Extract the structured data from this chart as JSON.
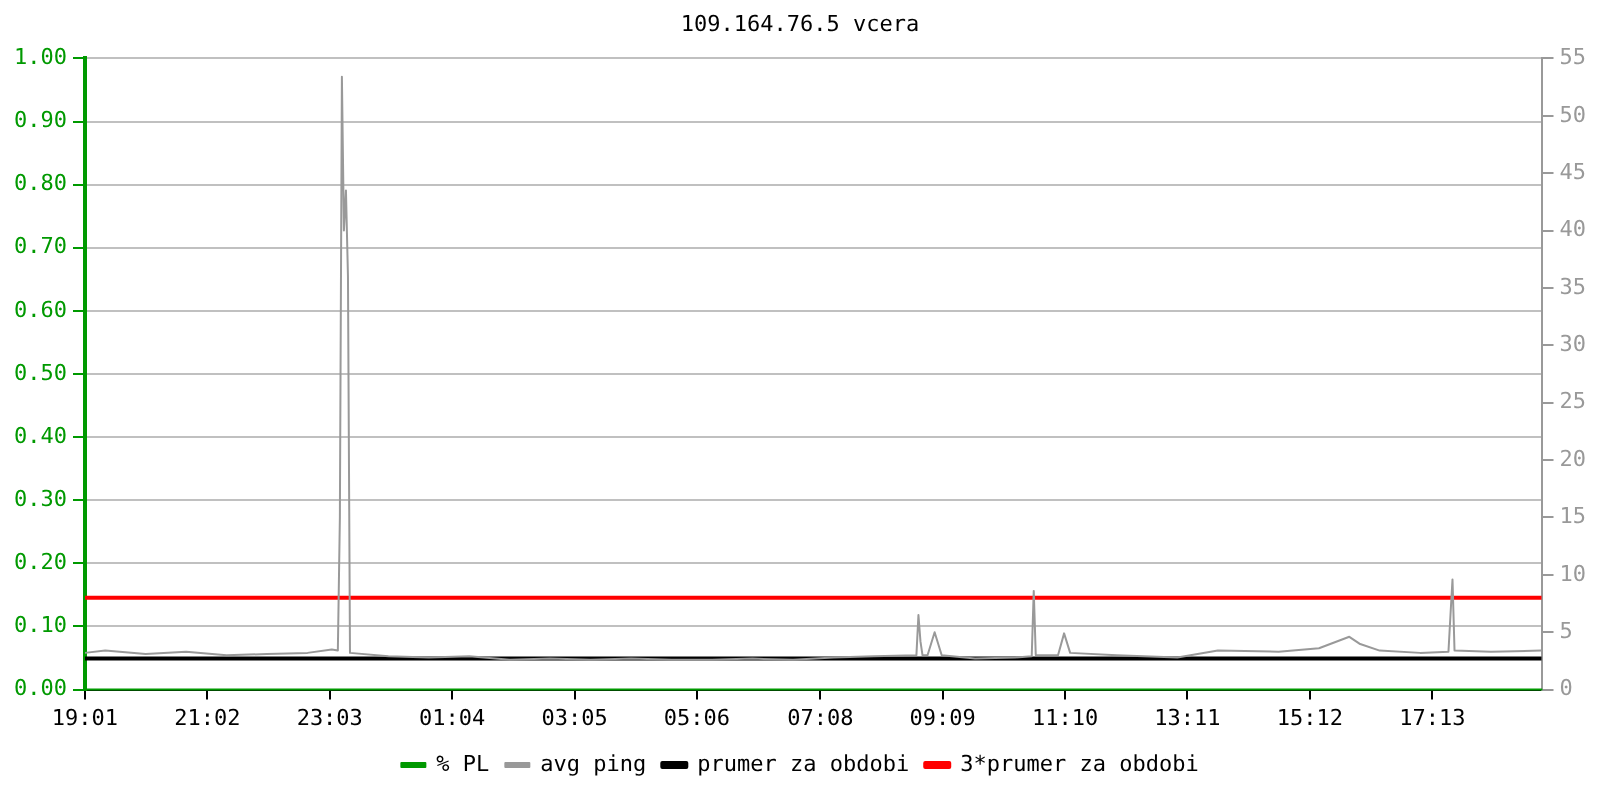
{
  "chart_data": {
    "type": "line",
    "title": "109.164.76.5 vcera",
    "marker": "none",
    "grid": "y",
    "legend": "bottom",
    "xlim": [
      "--01-01T19:01",
      "--01-02T19:01"
    ],
    "xticks": [
      {
        "value": "--01-01T19:01",
        "label": "19:01"
      },
      {
        "value": "--01-01T21:02",
        "label": "21:02"
      },
      {
        "value": "--01-01T23:03",
        "label": "23:03"
      },
      {
        "value": "--01-02T01:04",
        "label": "01:04"
      },
      {
        "value": "--01-02T03:05",
        "label": "03:05"
      },
      {
        "value": "--01-02T05:06",
        "label": "05:06"
      },
      {
        "value": "--01-02T07:08",
        "label": "07:08"
      },
      {
        "value": "--01-02T09:09",
        "label": "09:09"
      },
      {
        "value": "--01-02T11:10",
        "label": "11:10"
      },
      {
        "value": "--01-02T13:11",
        "label": "13:11"
      },
      {
        "value": "--01-02T15:12",
        "label": "15:12"
      },
      {
        "value": "--01-02T17:13",
        "label": "17:13"
      }
    ],
    "ylim": [
      0,
      1
    ],
    "yticks": [
      {
        "value": 0,
        "label": "0.00"
      },
      {
        "value": 0.1,
        "label": "0.10"
      },
      {
        "value": 0.2,
        "label": "0.20"
      },
      {
        "value": 0.3,
        "label": "0.30"
      },
      {
        "value": 0.4,
        "label": "0.40"
      },
      {
        "value": 0.5,
        "label": "0.50"
      },
      {
        "value": 0.6,
        "label": "0.60"
      },
      {
        "value": 0.7,
        "label": "0.70"
      },
      {
        "value": 0.8,
        "label": "0.80"
      },
      {
        "value": 0.9,
        "label": "0.90"
      },
      {
        "value": 1,
        "label": "1.00"
      }
    ],
    "y2lim": [
      0,
      55
    ],
    "y2ticks": [
      0,
      5,
      10,
      15,
      20,
      25,
      30,
      35,
      40,
      45,
      50,
      55
    ],
    "series": [
      {
        "name": "% PL",
        "color": "#009900",
        "x": [
          "--01-01T19:01",
          "--01-02T19:01"
        ],
        "values": [
          0,
          0
        ]
      },
      {
        "name": "avg ping",
        "color": "#999999",
        "axis": "y2",
        "x": [
          "--01-01T19:01",
          "--01-01T19:21",
          "--01-01T20:01",
          "--01-01T20:41",
          "--01-01T21:21",
          "--01-01T22:01",
          "--01-01T22:41",
          "--01-01T23:05",
          "--01-01T23:11",
          "--01-01T23:13",
          "--01-01T23:15",
          "--01-01T23:17",
          "--01-01T23:19",
          "--01-01T23:21",
          "--01-01T23:23",
          "--01-02T00:01",
          "--01-02T00:41",
          "--01-02T01:21",
          "--01-02T02:01",
          "--01-02T02:41",
          "--01-02T03:21",
          "--01-02T04:01",
          "--01-02T04:41",
          "--01-02T05:21",
          "--01-02T06:01",
          "--01-02T06:41",
          "--01-02T07:21",
          "--01-02T08:01",
          "--01-02T08:43",
          "--01-02T08:45",
          "--01-02T08:47",
          "--01-02T08:49",
          "--01-02T08:54",
          "--01-02T09:01",
          "--01-02T09:08",
          "--01-02T09:41",
          "--01-02T10:21",
          "--01-02T10:37",
          "--01-02T10:39",
          "--01-02T10:41",
          "--01-02T11:03",
          "--01-02T11:09",
          "--01-02T11:15",
          "--01-02T12:01",
          "--01-02T13:01",
          "--01-02T13:41",
          "--01-02T14:41",
          "--01-02T15:21",
          "--01-02T15:51",
          "--01-02T16:01",
          "--01-02T16:21",
          "--01-02T17:01",
          "--01-02T17:29",
          "--01-02T17:31",
          "--01-02T17:33",
          "--01-02T17:35",
          "--01-02T18:11",
          "--01-02T19:01"
        ],
        "values": [
          3.2,
          3.4,
          3.1,
          3.3,
          3.0,
          3.1,
          3.2,
          3.5,
          3.4,
          15,
          53.4,
          40,
          43.5,
          36,
          3.2,
          2.9,
          2.8,
          2.9,
          2.6,
          2.7,
          2.6,
          2.7,
          2.6,
          2.6,
          2.7,
          2.6,
          2.8,
          2.9,
          3.0,
          6.5,
          4.2,
          3.0,
          3.0,
          5.0,
          3.0,
          2.7,
          2.8,
          2.9,
          8.6,
          3.0,
          3.0,
          4.9,
          3.2,
          3.0,
          2.8,
          3.4,
          3.3,
          3.6,
          4.6,
          4.0,
          3.4,
          3.2,
          3.3,
          6.5,
          9.6,
          3.4,
          3.3,
          3.4
        ]
      },
      {
        "name": "prumer za obdobi",
        "color": "#000000",
        "axis": "y2",
        "x": [
          "--01-01T19:01",
          "--01-02T19:01"
        ],
        "values": [
          2.7,
          2.7
        ]
      },
      {
        "name": "3*prumer za obdobi",
        "color": "#ff0000",
        "axis": "y2",
        "x": [
          "--01-01T19:01",
          "--01-02T19:01"
        ],
        "values": [
          8.0,
          8.0
        ]
      }
    ]
  }
}
